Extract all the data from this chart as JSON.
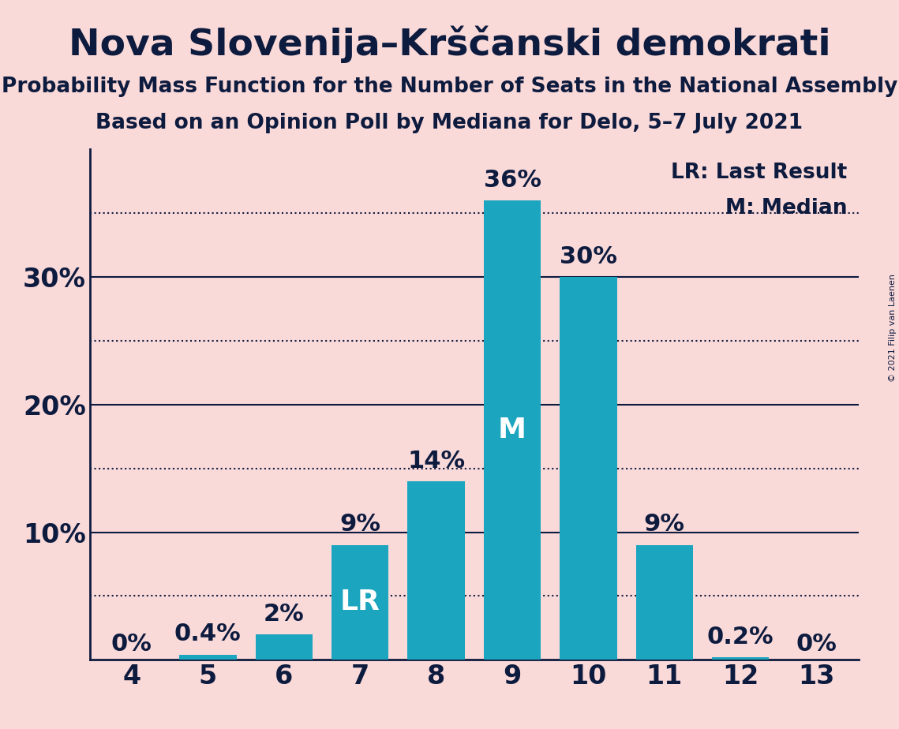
{
  "title": "Nova Slovenija–Krščanski demokrati",
  "subtitle1": "Probability Mass Function for the Number of Seats in the National Assembly",
  "subtitle2": "Based on an Opinion Poll by Mediana for Delo, 5–7 July 2021",
  "copyright": "© 2021 Filip van Laenen",
  "categories": [
    4,
    5,
    6,
    7,
    8,
    9,
    10,
    11,
    12,
    13
  ],
  "values": [
    0.0,
    0.4,
    2.0,
    9.0,
    14.0,
    36.0,
    30.0,
    9.0,
    0.2,
    0.0
  ],
  "labels": [
    "0%",
    "0.4%",
    "2%",
    "9%",
    "14%",
    "36%",
    "30%",
    "9%",
    "0.2%",
    "0%"
  ],
  "bar_color": "#1ba5be",
  "background_color": "#fad9d9",
  "text_color": "#0d1b3e",
  "median_bar": 9,
  "lr_bar": 7,
  "legend_lr": "LR: Last Result",
  "legend_m": "M: Median",
  "solid_yticks": [
    10,
    20,
    30
  ],
  "dotted_yticks": [
    5,
    15,
    25,
    35
  ],
  "ylim": [
    0,
    40
  ],
  "title_fontsize": 34,
  "subtitle_fontsize": 19,
  "tick_fontsize": 24,
  "legend_fontsize": 19,
  "bar_label_fontsize": 22,
  "inbar_label_fontsize": 26,
  "bar_width": 0.75,
  "ytick_positions": [
    10,
    20,
    30
  ],
  "ytick_labels": [
    "10%",
    "20%",
    "30%"
  ]
}
